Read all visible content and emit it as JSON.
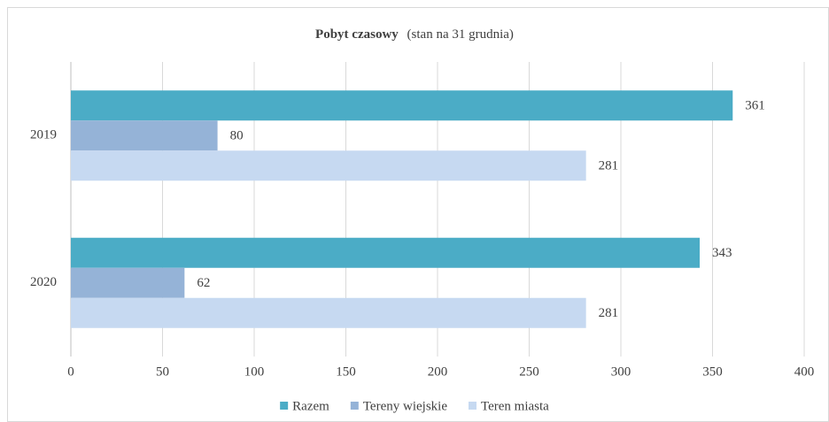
{
  "chart_data": {
    "type": "bar",
    "orientation": "horizontal",
    "title": "Pobyt czasowy",
    "subtitle": "(stan na 31 grudnia)",
    "categories": [
      "2019",
      "2020"
    ],
    "series": [
      {
        "name": "Razem",
        "color": "#4bacc6",
        "values": [
          361,
          343
        ]
      },
      {
        "name": "Tereny wiejskie",
        "color": "#95b3d7",
        "values": [
          80,
          62
        ]
      },
      {
        "name": "Teren miasta",
        "color": "#c6d9f1",
        "values": [
          281,
          281
        ]
      }
    ],
    "xlim": [
      0,
      400
    ],
    "xticks": [
      0,
      50,
      100,
      150,
      200,
      250,
      300,
      350,
      400
    ],
    "grid": true,
    "legend": "bottom"
  }
}
